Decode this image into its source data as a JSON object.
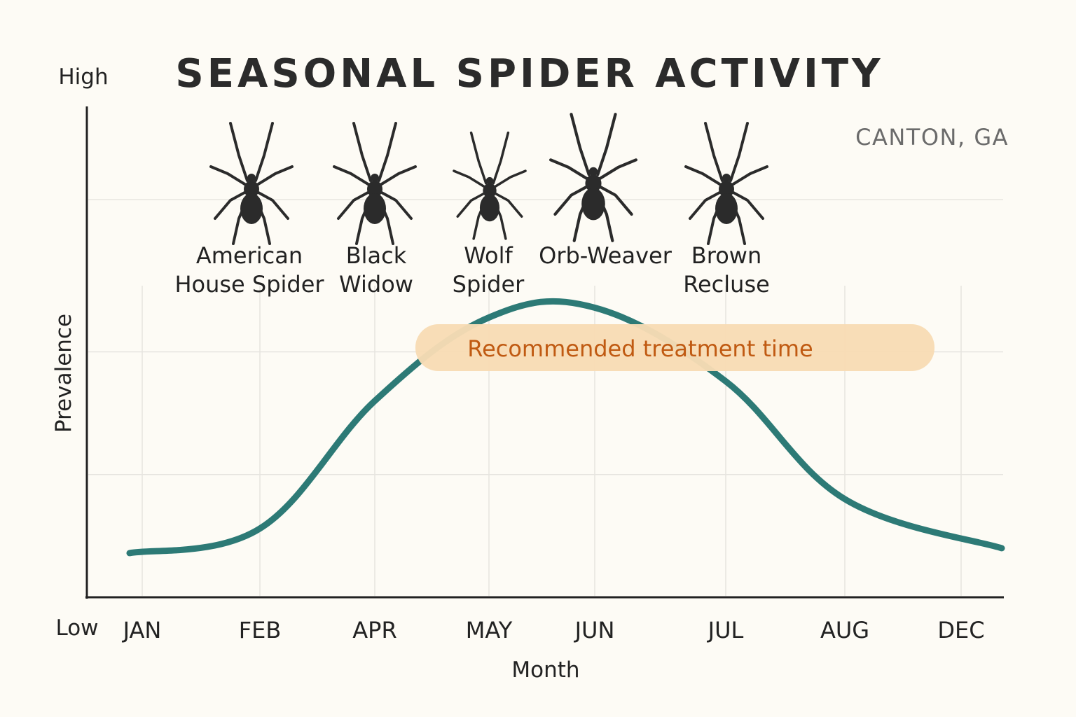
{
  "chart_data": {
    "type": "line",
    "title": "SEASONAL SPIDER ACTIVITY",
    "location": "CANTON, GA",
    "xlabel": "Month",
    "ylabel": "Prevalence",
    "y_high_label": "High",
    "y_low_label": "Low",
    "categories": [
      "JAN",
      "FEB",
      "APR",
      "MAY",
      "JUN",
      "JUL",
      "AUG",
      "DEC"
    ],
    "series": [
      {
        "values": [
          0.09,
          0.14,
          0.4,
          0.57,
          0.59,
          0.44,
          0.2,
          0.1
        ]
      }
    ],
    "ylim": [
      0,
      1
    ],
    "grid": true,
    "line_color": "#2d7a76",
    "annotation": {
      "label": "Recommended treatment time",
      "from": "MAY",
      "to": "JUL",
      "color": "#f8dcb4",
      "text_color": "#c05a12"
    },
    "spiders": [
      {
        "lines": [
          "American",
          "House Spider"
        ],
        "icon": "spider-icon"
      },
      {
        "lines": [
          "Black",
          "Widow"
        ],
        "icon": "spider-icon"
      },
      {
        "lines": [
          "Wolf",
          "Spider"
        ],
        "icon": "spider-icon"
      },
      {
        "lines": [
          "Orb-Weaver"
        ],
        "icon": "spider-icon"
      },
      {
        "lines": [
          "Brown",
          "Recluse"
        ],
        "icon": "spider-icon"
      }
    ]
  }
}
